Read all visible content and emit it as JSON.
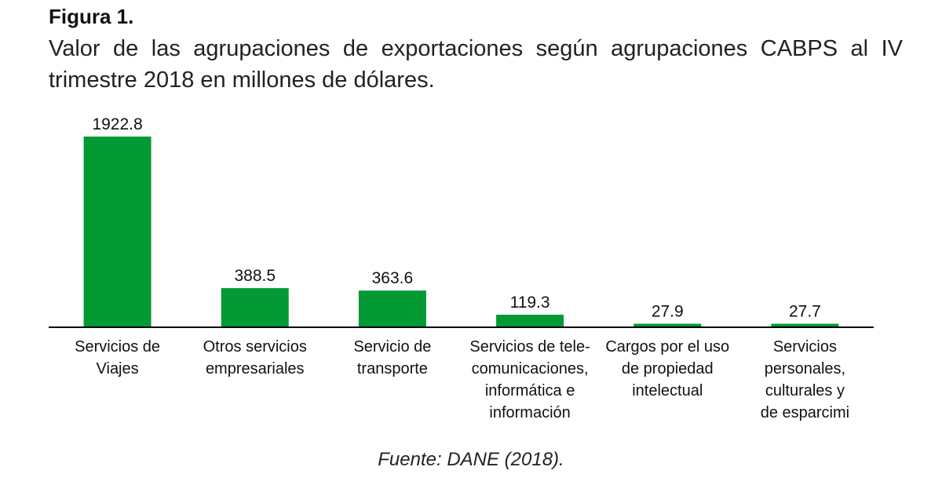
{
  "figure": {
    "label": "Figura 1.",
    "title": "Valor de las agrupaciones de exportaciones según agrupaciones CABPS al IV trimestre 2018 en millones de dólares.",
    "source": "Fuente: DANE (2018)."
  },
  "chart_data": {
    "type": "bar",
    "categories": [
      [
        "Servicios de",
        "Viajes"
      ],
      [
        "Otros servicios",
        "empresariales"
      ],
      [
        "Servicio de",
        "transporte"
      ],
      [
        "Servicios de tele-",
        "comunicaciones,",
        "informática e",
        "información"
      ],
      [
        "Cargos por el uso",
        "de propiedad",
        "intelectual"
      ],
      [
        "Servicios",
        "personales,",
        "culturales y",
        "de esparcimi"
      ]
    ],
    "values": [
      1922.8,
      388.5,
      363.6,
      119.3,
      27.9,
      27.7
    ],
    "data_labels": [
      "1922.8",
      "388.5",
      "363.6",
      "119.3",
      "27.9",
      "27.7"
    ],
    "ylim": [
      0,
      1922.8
    ],
    "grid": false,
    "bar_color": "#039a36"
  }
}
